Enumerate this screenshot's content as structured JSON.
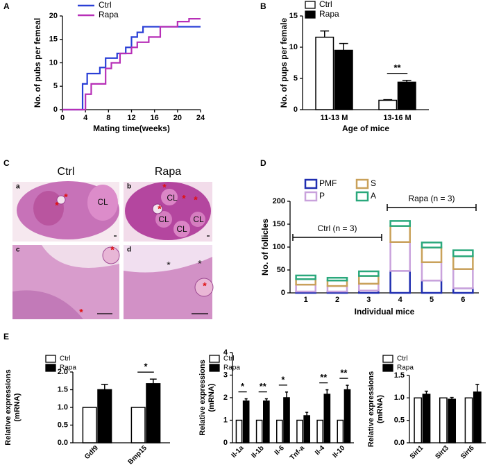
{
  "panel_labels": [
    "A",
    "B",
    "C",
    "D",
    "E"
  ],
  "micrographs": {
    "columns": [
      "Ctrl",
      "Rapa"
    ],
    "panels": [
      {
        "label": "a",
        "annotations": [
          "*",
          "*",
          "CL"
        ]
      },
      {
        "label": "b",
        "annotations": [
          "*",
          "*",
          "*",
          "*",
          "CL",
          "CL",
          "CL",
          "CL"
        ]
      },
      {
        "label": "c",
        "annotations": [
          "*",
          "*"
        ]
      },
      {
        "label": "d",
        "annotations": [
          "*",
          "*",
          "*"
        ]
      }
    ]
  },
  "chart_data": [
    {
      "type": "line",
      "xlabel": "Mating time(weeks)",
      "ylabel": "No. of pubs per femeal",
      "xlim": [
        0,
        24
      ],
      "xticks": [
        0,
        4,
        8,
        12,
        16,
        20,
        24
      ],
      "ylim": [
        0,
        20
      ],
      "yticks": [
        0,
        5,
        10,
        15,
        20
      ],
      "series": [
        {
          "name": "Ctrl",
          "color": "#2a3fd6",
          "x": [
            0,
            3.5,
            3.5,
            4.3,
            4.3,
            6.5,
            6.5,
            7.5,
            7.5,
            9.5,
            9.5,
            11,
            11,
            12,
            12,
            13,
            13,
            14,
            14,
            24
          ],
          "values": [
            0,
            0,
            5.5,
            5.5,
            7.7,
            7.7,
            9,
            9,
            11,
            11,
            12,
            12,
            13.3,
            13.3,
            15.5,
            15.5,
            16.5,
            16.5,
            17.7,
            17.7
          ]
        },
        {
          "name": "Rapa",
          "color": "#b72fb7",
          "x": [
            0,
            4,
            4,
            5,
            5,
            7.5,
            7.5,
            8.5,
            8.5,
            10,
            10,
            12,
            12,
            13,
            13,
            15,
            15,
            17,
            17,
            20,
            20,
            22,
            22,
            24
          ],
          "values": [
            0,
            0,
            3.3,
            3.3,
            5.5,
            5.5,
            8.8,
            8.8,
            10,
            10,
            12,
            12,
            13.3,
            13.3,
            14.4,
            14.4,
            15.5,
            15.5,
            17.7,
            17.7,
            18.8,
            18.8,
            19.4,
            19.4
          ]
        }
      ]
    },
    {
      "type": "bar",
      "xlabel": "Age of mice",
      "ylabel": "No. of pups per female",
      "categories": [
        "11-13 M",
        "13-16 M"
      ],
      "ylim": [
        0,
        15
      ],
      "yticks": [
        0,
        5,
        10,
        15
      ],
      "significance": [
        null,
        "**"
      ],
      "series": [
        {
          "name": "Ctrl",
          "color": "#ffffff",
          "values": [
            11.6,
            1.5
          ],
          "errors": [
            1.0,
            0.1
          ]
        },
        {
          "name": "Rapa",
          "color": "#000000",
          "values": [
            9.5,
            4.4
          ],
          "errors": [
            1.1,
            0.3
          ]
        }
      ]
    },
    {
      "type": "stacked_bar",
      "xlabel": "Individual mice",
      "ylabel": "No. of follicles",
      "categories": [
        "1",
        "2",
        "3",
        "4",
        "5",
        "6"
      ],
      "ylim": [
        0,
        200
      ],
      "yticks": [
        0,
        50,
        100,
        150,
        200
      ],
      "group_labels": [
        "Ctrl (n = 3)",
        "Rapa (n = 3)"
      ],
      "series": [
        {
          "name": "PMF",
          "color": "#1f2db0",
          "values": [
            3,
            3,
            5,
            48,
            27,
            10
          ]
        },
        {
          "name": "P",
          "color": "#c9a2dc",
          "values": [
            15,
            12,
            15,
            63,
            40,
            42
          ]
        },
        {
          "name": "S",
          "color": "#c9a15a",
          "values": [
            12,
            12,
            17,
            35,
            32,
            28
          ]
        },
        {
          "name": "A",
          "color": "#2aa87c",
          "values": [
            8,
            6,
            10,
            11,
            11,
            13
          ]
        }
      ]
    },
    {
      "type": "bar",
      "ylabel": [
        "Relative expressions",
        "(mRNA)"
      ],
      "categories": [
        "Gdf9",
        "Bmp15"
      ],
      "ylim": [
        0,
        2
      ],
      "yticks": [
        {
          "value": 0,
          "label": "0.0"
        },
        {
          "value": 0.5,
          "label": "0.5"
        },
        {
          "value": 1,
          "label": "1.0"
        },
        {
          "value": 1.5,
          "label": "1.5"
        },
        {
          "value": 2,
          "label": "2.0"
        }
      ],
      "significance": [
        null,
        "*"
      ],
      "series": [
        {
          "name": "Ctrl",
          "color": "#ffffff",
          "values": [
            1,
            1
          ]
        },
        {
          "name": "Rapa",
          "color": "#000000",
          "values": [
            1.5,
            1.67
          ],
          "errors": [
            0.15,
            0.13
          ]
        }
      ]
    },
    {
      "type": "bar",
      "ylabel": [
        "Relative expressions",
        "(mRNA)"
      ],
      "categories": [
        "Il-1a",
        "Il-1b",
        "Il-6",
        "Tnf-a",
        "Il-4",
        "Il-10"
      ],
      "ylim": [
        0,
        4
      ],
      "yticks": [
        0,
        1,
        2,
        3,
        4
      ],
      "significance": [
        "*",
        "**",
        "*",
        null,
        "**",
        "**"
      ],
      "series": [
        {
          "name": "Ctrl",
          "color": "#ffffff",
          "values": [
            1,
            1,
            1,
            1,
            1,
            1
          ]
        },
        {
          "name": "Rapa",
          "color": "#000000",
          "values": [
            1.85,
            1.85,
            2.0,
            1.2,
            2.15,
            2.35
          ],
          "errors": [
            0.1,
            0.1,
            0.25,
            0.15,
            0.2,
            0.2
          ]
        }
      ]
    },
    {
      "type": "bar",
      "ylabel": [
        "Relative expressions",
        "(mRNA)"
      ],
      "categories": [
        "Sirt1",
        "Sirt3",
        "Sirt6"
      ],
      "ylim": [
        0,
        1.5
      ],
      "yticks": [
        {
          "value": 0,
          "label": "0.0"
        },
        {
          "value": 0.5,
          "label": "0.5"
        },
        {
          "value": 1,
          "label": "1.0"
        },
        {
          "value": 1.5,
          "label": "1.5"
        }
      ],
      "series": [
        {
          "name": "Ctrl",
          "color": "#ffffff",
          "values": [
            1,
            1,
            1
          ]
        },
        {
          "name": "Rapa",
          "color": "#000000",
          "values": [
            1.08,
            0.97,
            1.13
          ],
          "errors": [
            0.07,
            0.04,
            0.17
          ]
        }
      ]
    }
  ]
}
